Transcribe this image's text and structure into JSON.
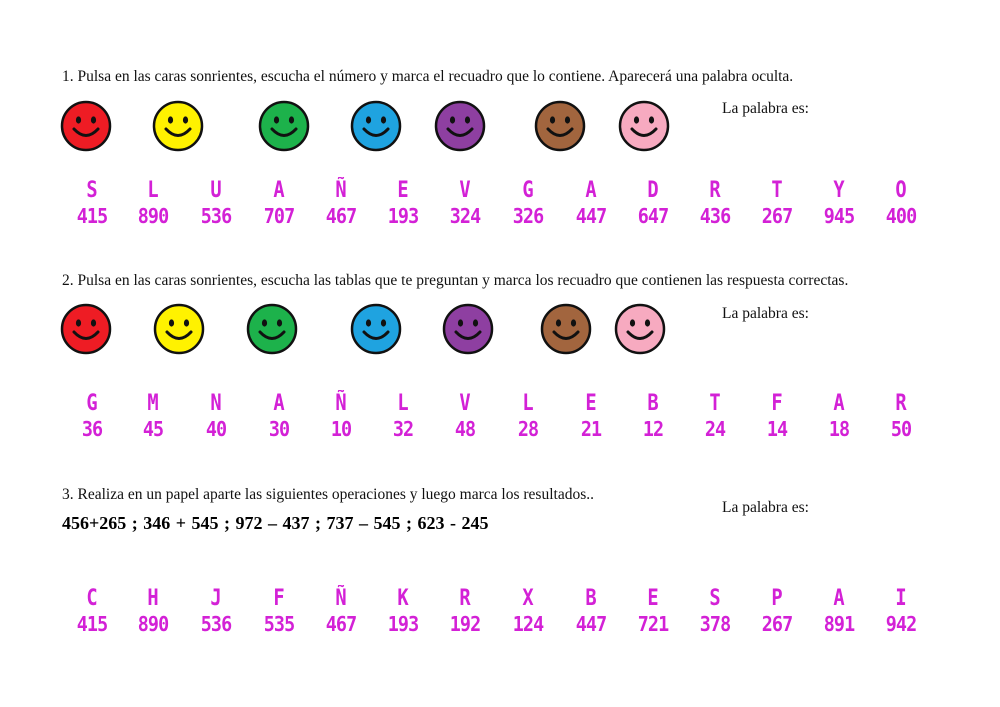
{
  "sections": [
    {
      "instruction": "1. Pulsa en las caras sonrientes, escucha el número y marca el recuadro que lo contiene. Aparecerá una palabra oculta.",
      "palabra_label": "La palabra es:",
      "faces": [
        {
          "name": "red",
          "color": "#ee1c24"
        },
        {
          "name": "yellow",
          "color": "#fff200"
        },
        {
          "name": "green",
          "color": "#1db24b"
        },
        {
          "name": "blue",
          "color": "#1fa3e0"
        },
        {
          "name": "purple",
          "color": "#8e3fa1"
        },
        {
          "name": "brown",
          "color": "#a2653e"
        },
        {
          "name": "pink",
          "color": "#f7aac0"
        }
      ],
      "cells": [
        {
          "letter": "S",
          "number": "415"
        },
        {
          "letter": "L",
          "number": "890"
        },
        {
          "letter": "U",
          "number": "536"
        },
        {
          "letter": "A",
          "number": "707"
        },
        {
          "letter": "Ñ",
          "number": "467"
        },
        {
          "letter": "E",
          "number": "193"
        },
        {
          "letter": "V",
          "number": "324"
        },
        {
          "letter": "G",
          "number": "326"
        },
        {
          "letter": "A",
          "number": "447"
        },
        {
          "letter": "D",
          "number": "647"
        },
        {
          "letter": "R",
          "number": "436"
        },
        {
          "letter": "T",
          "number": "267"
        },
        {
          "letter": "Y",
          "number": "945"
        },
        {
          "letter": "O",
          "number": "400"
        }
      ]
    },
    {
      "instruction": "2. Pulsa en las caras sonrientes, escucha las tablas que te preguntan y marca los recuadro que contienen las respuesta correctas.",
      "palabra_label": "La palabra es:",
      "faces": [
        {
          "name": "red",
          "color": "#ee1c24"
        },
        {
          "name": "yellow",
          "color": "#fff200"
        },
        {
          "name": "green",
          "color": "#1db24b"
        },
        {
          "name": "blue",
          "color": "#1fa3e0"
        },
        {
          "name": "purple",
          "color": "#8e3fa1"
        },
        {
          "name": "brown",
          "color": "#a2653e"
        },
        {
          "name": "pink",
          "color": "#f7aac0"
        }
      ],
      "cells": [
        {
          "letter": "G",
          "number": "36"
        },
        {
          "letter": "M",
          "number": "45"
        },
        {
          "letter": "N",
          "number": "40"
        },
        {
          "letter": "A",
          "number": "30"
        },
        {
          "letter": "Ñ",
          "number": "10"
        },
        {
          "letter": "L",
          "number": "32"
        },
        {
          "letter": "V",
          "number": "48"
        },
        {
          "letter": "L",
          "number": "28"
        },
        {
          "letter": "E",
          "number": "21"
        },
        {
          "letter": "B",
          "number": "12"
        },
        {
          "letter": "T",
          "number": "24"
        },
        {
          "letter": "F",
          "number": "14"
        },
        {
          "letter": "A",
          "number": "18"
        },
        {
          "letter": "R",
          "number": "50"
        }
      ]
    },
    {
      "instruction": "3. Realiza en un papel aparte las siguientes operaciones y luego marca los resultados..",
      "operations": "456+265  ;  346 + 545  ;  972 – 437  ;  737 – 545  ;  623 - 245",
      "palabra_label": "La palabra es:",
      "cells": [
        {
          "letter": "C",
          "number": "415"
        },
        {
          "letter": "H",
          "number": "890"
        },
        {
          "letter": "J",
          "number": "536"
        },
        {
          "letter": "F",
          "number": "535"
        },
        {
          "letter": "Ñ",
          "number": "467"
        },
        {
          "letter": "K",
          "number": "193"
        },
        {
          "letter": "R",
          "number": "192"
        },
        {
          "letter": "X",
          "number": "124"
        },
        {
          "letter": "B",
          "number": "447"
        },
        {
          "letter": "E",
          "number": "721"
        },
        {
          "letter": "S",
          "number": "378"
        },
        {
          "letter": "P",
          "number": "267"
        },
        {
          "letter": "A",
          "number": "891"
        },
        {
          "letter": "I",
          "number": "942"
        }
      ]
    }
  ]
}
